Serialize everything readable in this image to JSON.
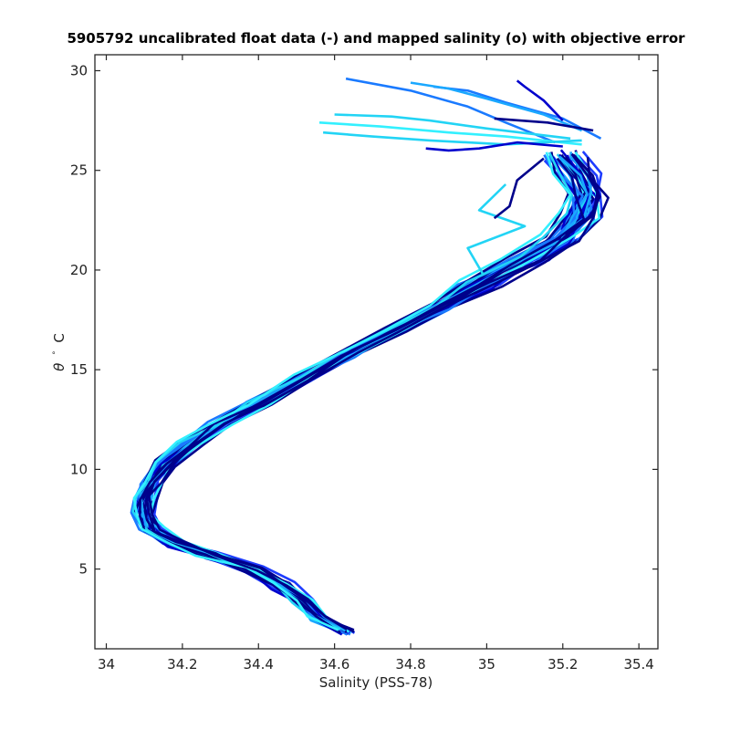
{
  "chart_data": {
    "type": "line",
    "title": "5905792 uncalibrated float data (-) and mapped salinity (o) with objective error",
    "xlabel": "Salinity (PSS-78)",
    "ylabel_symbol": "θ",
    "ylabel_unit": "C",
    "xlim": [
      33.97,
      35.45
    ],
    "ylim": [
      1.0,
      30.8
    ],
    "xticks": [
      34,
      34.2,
      34.4,
      34.6,
      34.8,
      35,
      35.2,
      35.4
    ],
    "xtick_labels": [
      "34",
      "34.2",
      "34.4",
      "34.6",
      "34.8",
      "35",
      "35.2",
      "35.4"
    ],
    "yticks": [
      5,
      10,
      15,
      20,
      25,
      30
    ],
    "ytick_labels": [
      "5",
      "10",
      "15",
      "20",
      "25",
      "30"
    ],
    "grid": false,
    "colormap": [
      "#00008b",
      "#0000cd",
      "#1e3cff",
      "#1a7aff",
      "#1aa8ff",
      "#22d4f5",
      "#33f0ff"
    ],
    "series_count": 36,
    "base_profile": {
      "salinity": [
        34.63,
        34.56,
        34.52,
        34.46,
        34.38,
        34.27,
        34.18,
        34.12,
        34.1,
        34.105,
        34.12,
        34.16,
        34.22,
        34.3,
        34.4,
        34.52,
        34.64,
        34.76,
        34.88,
        34.98,
        35.1,
        35.2,
        35.25,
        35.27,
        35.24,
        35.2
      ],
      "theta": [
        1.9,
        2.6,
        3.4,
        4.2,
        5.0,
        5.7,
        6.3,
        7.0,
        7.8,
        8.6,
        9.4,
        10.3,
        11.3,
        12.3,
        13.3,
        14.6,
        15.8,
        17.0,
        18.2,
        19.3,
        20.5,
        21.6,
        22.7,
        23.8,
        24.8,
        25.8
      ]
    },
    "surface_tails": [
      {
        "salinity": [
          35.18,
          35.05,
          34.95,
          34.8,
          34.63
        ],
        "theta": [
          26.4,
          27.4,
          28.2,
          29.0,
          29.6
        ],
        "color": "#1a7aff"
      },
      {
        "salinity": [
          35.22,
          35.0,
          34.85,
          34.75,
          34.6
        ],
        "theta": [
          26.6,
          27.1,
          27.5,
          27.7,
          27.8
        ],
        "color": "#22d4f5"
      },
      {
        "salinity": [
          35.25,
          35.05,
          34.9,
          34.72,
          34.56
        ],
        "theta": [
          26.3,
          26.7,
          26.9,
          27.2,
          27.4
        ],
        "color": "#33f0ff"
      },
      {
        "salinity": [
          35.25,
          35.05,
          34.85,
          34.7,
          34.57
        ],
        "theta": [
          26.5,
          26.3,
          26.5,
          26.7,
          26.9
        ],
        "color": "#22d4f5"
      },
      {
        "salinity": [
          35.2,
          35.08,
          34.98,
          34.9,
          34.84
        ],
        "theta": [
          26.2,
          26.4,
          26.1,
          26.0,
          26.1
        ],
        "color": "#0000cd"
      },
      {
        "salinity": [
          35.3,
          35.2,
          35.05,
          34.95,
          34.86
        ],
        "theta": [
          26.6,
          27.6,
          28.4,
          29.0,
          29.2
        ],
        "color": "#1a7aff"
      },
      {
        "salinity": [
          35.25,
          35.15,
          35.0,
          34.9,
          34.8
        ],
        "theta": [
          27.0,
          27.8,
          28.6,
          29.1,
          29.4
        ],
        "color": "#1aa8ff"
      },
      {
        "salinity": [
          35.2,
          35.15,
          35.1,
          35.08
        ],
        "theta": [
          27.5,
          28.5,
          29.2,
          29.5
        ],
        "color": "#0000cd"
      },
      {
        "salinity": [
          35.28,
          35.16,
          35.02
        ],
        "theta": [
          27.0,
          27.4,
          27.6
        ],
        "color": "#00008b"
      },
      {
        "salinity": [
          35.05,
          34.98,
          35.1,
          34.95,
          34.99
        ],
        "theta": [
          24.3,
          23.0,
          22.2,
          21.1,
          19.8
        ],
        "color": "#22d4f5"
      },
      {
        "salinity": [
          35.15,
          35.08,
          35.06,
          35.02
        ],
        "theta": [
          25.6,
          24.5,
          23.2,
          22.6
        ],
        "color": "#00008b"
      }
    ]
  }
}
